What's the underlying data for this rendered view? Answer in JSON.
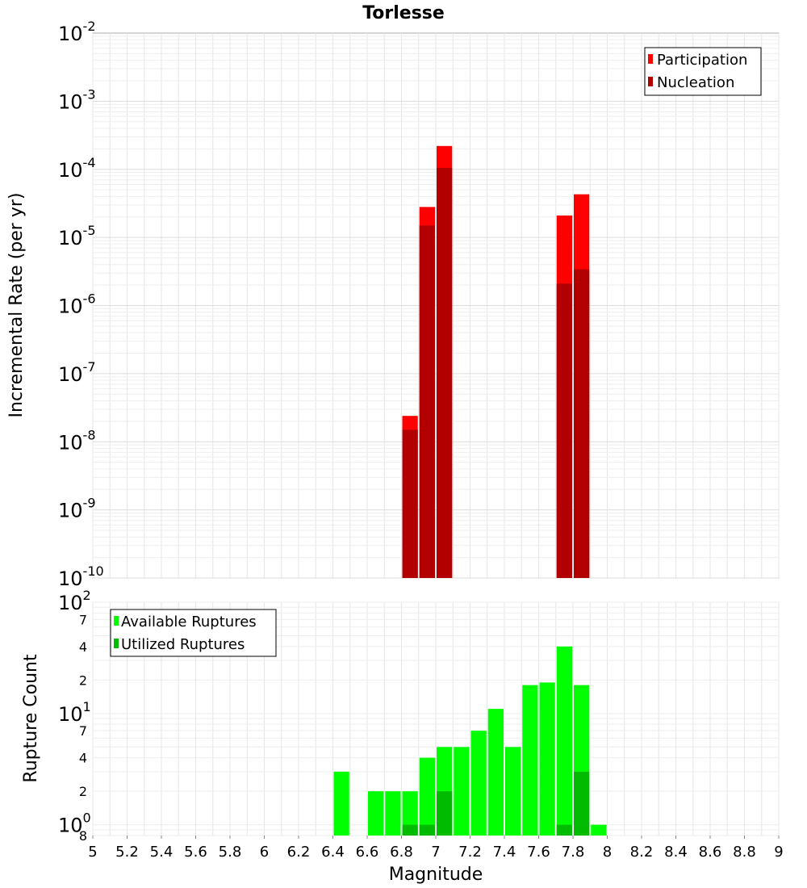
{
  "title": "Torlesse",
  "colors": {
    "participation": "#ff0000",
    "nucleation": "#b20000",
    "available": "#00ff00",
    "utilized": "#00bb00",
    "grid": "#e6e6e6",
    "border": "#aaaaaa"
  },
  "chart_data": [
    {
      "type": "bar",
      "title": "Torlesse",
      "xlabel": "Magnitude",
      "ylabel": "Incremental Rate (per yr)",
      "yscale": "log",
      "xlim": [
        5,
        9
      ],
      "ylim": [
        1e-10,
        0.01
      ],
      "y_tick_labels": [
        {
          "base": "10",
          "exp": "-10"
        },
        {
          "base": "10",
          "exp": "-9"
        },
        {
          "base": "10",
          "exp": "-8"
        },
        {
          "base": "10",
          "exp": "-7"
        },
        {
          "base": "10",
          "exp": "-6"
        },
        {
          "base": "10",
          "exp": "-5"
        },
        {
          "base": "10",
          "exp": "-4"
        },
        {
          "base": "10",
          "exp": "-3"
        },
        {
          "base": "10",
          "exp": "-2"
        }
      ],
      "legend": {
        "position": "top-right",
        "entries": [
          "Participation",
          "Nucleation"
        ]
      },
      "grid": true,
      "bin_width": 0.1,
      "series": [
        {
          "name": "Participation",
          "x": [
            6.85,
            6.95,
            7.05,
            7.75,
            7.85
          ],
          "values": [
            2.4e-08,
            2.8e-05,
            0.00022,
            2.1e-05,
            4.3e-05
          ]
        },
        {
          "name": "Nucleation",
          "x": [
            6.85,
            6.95,
            7.05,
            7.75,
            7.85
          ],
          "values": [
            1.5e-08,
            1.5e-05,
            0.000105,
            2.1e-06,
            3.4e-06
          ]
        }
      ]
    },
    {
      "type": "bar",
      "xlabel": "Magnitude",
      "ylabel": "Rupture Count",
      "yscale": "log",
      "xlim": [
        5,
        9
      ],
      "ylim": [
        0.8,
        100
      ],
      "x_ticks": [
        "5",
        "5.2",
        "5.4",
        "5.6",
        "5.8",
        "6",
        "6.2",
        "6.4",
        "6.6",
        "6.8",
        "7",
        "7.2",
        "7.4",
        "7.6",
        "7.8",
        "8",
        "8.2",
        "8.4",
        "8.6",
        "8.8",
        "9"
      ],
      "y_major_labels": [
        {
          "value": 1,
          "base": "10",
          "exp": "0"
        },
        {
          "value": 10,
          "base": "10",
          "exp": "1"
        },
        {
          "value": 100,
          "base": "10",
          "exp": "2"
        }
      ],
      "y_minor_labels": [
        {
          "value": 0.8,
          "label": "8"
        },
        {
          "value": 2,
          "label": "2"
        },
        {
          "value": 4,
          "label": "4"
        },
        {
          "value": 7,
          "label": "7"
        },
        {
          "value": 20,
          "label": "2"
        },
        {
          "value": 40,
          "label": "4"
        },
        {
          "value": 70,
          "label": "7"
        }
      ],
      "legend": {
        "position": "top-left",
        "entries": [
          "Available Ruptures",
          "Utilized Ruptures"
        ]
      },
      "grid": true,
      "bin_width": 0.1,
      "series": [
        {
          "name": "Available Ruptures",
          "x": [
            6.45,
            6.65,
            6.75,
            6.85,
            6.95,
            7.05,
            7.15,
            7.25,
            7.35,
            7.45,
            7.55,
            7.65,
            7.75,
            7.85,
            7.95
          ],
          "values": [
            3,
            2,
            2,
            2,
            4,
            5,
            5,
            7,
            11,
            5,
            18,
            19,
            40,
            18,
            1
          ]
        },
        {
          "name": "Utilized Ruptures",
          "x": [
            6.85,
            6.95,
            7.05,
            7.75,
            7.85
          ],
          "values": [
            1,
            1,
            2,
            1,
            3
          ]
        }
      ]
    }
  ]
}
